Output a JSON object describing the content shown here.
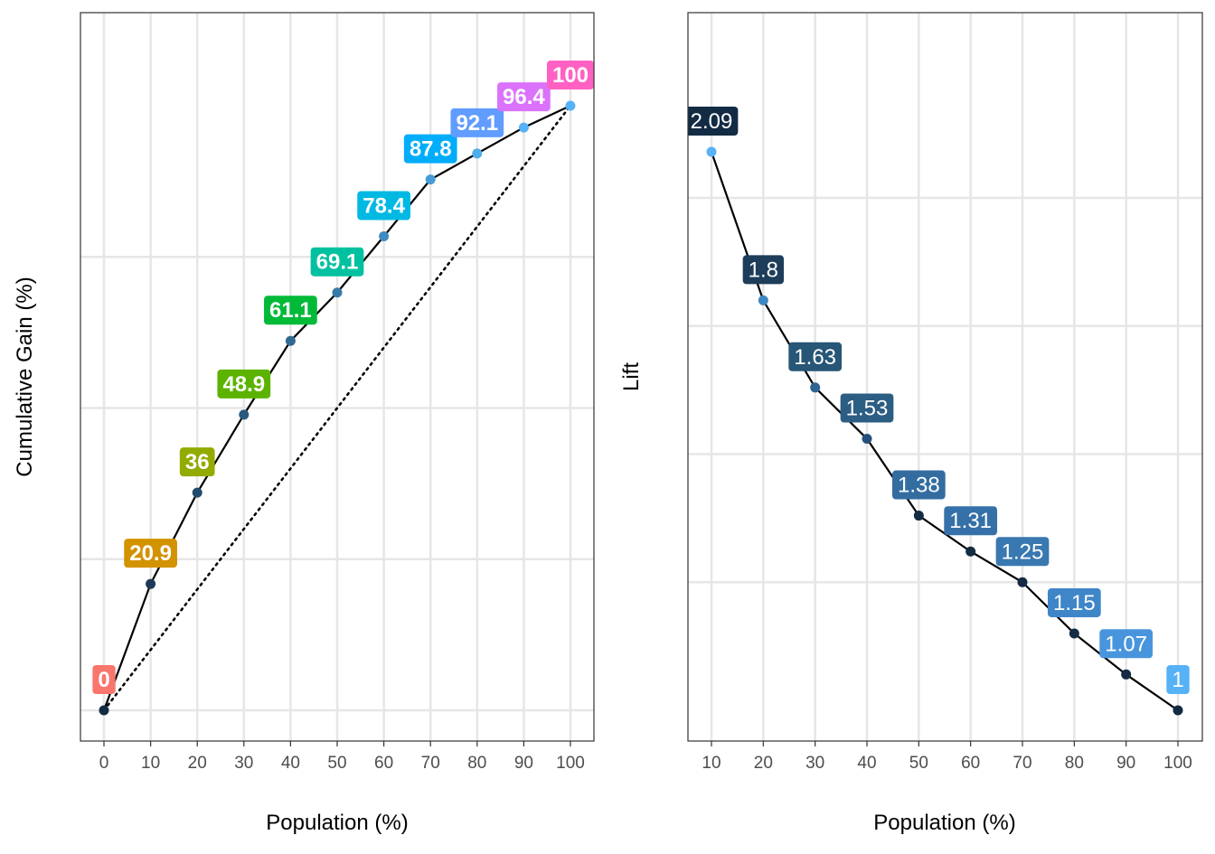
{
  "chart_data": [
    {
      "type": "line",
      "xlabel": "Population (%)",
      "ylabel": "Cumulative Gain (%)",
      "xlim": [
        0,
        100
      ],
      "ylim": [
        0,
        100
      ],
      "x_ticks": [
        "0",
        "10",
        "20",
        "30",
        "40",
        "50",
        "60",
        "70",
        "80",
        "90",
        "100"
      ],
      "y_gridlines": [
        0,
        25,
        50,
        75
      ],
      "grid": true,
      "series": [
        {
          "x": [
            0,
            10,
            20,
            30,
            40,
            50,
            60,
            70,
            80,
            90,
            100
          ],
          "values": [
            0,
            20.9,
            36,
            48.9,
            61.1,
            69.1,
            78.4,
            87.8,
            92.1,
            96.4,
            100
          ],
          "labels": [
            "0",
            "20.9",
            "36",
            "48.9",
            "61.1",
            "69.1",
            "78.4",
            "87.8",
            "92.1",
            "96.4",
            "100"
          ],
          "point_colors": [
            "#132B43",
            "#1B3A57",
            "#224A6B",
            "#29597F",
            "#306A94",
            "#377AA9",
            "#3F8BBF",
            "#469DD5",
            "#4DAEEB",
            "#56B1F7",
            "#56B1F7"
          ],
          "label_colors": [
            "#F8766D",
            "#D39200",
            "#93AA00",
            "#5BB300",
            "#00BA38",
            "#00C19F",
            "#00B9E3",
            "#00ADFA",
            "#619CFF",
            "#DB72FB",
            "#FF61C3"
          ]
        },
        {
          "x": [
            0,
            100
          ],
          "values": [
            0,
            100
          ],
          "style": "dotted"
        }
      ]
    },
    {
      "type": "line",
      "xlabel": "Population (%)",
      "ylabel": "Lift",
      "xlim": [
        10,
        100
      ],
      "ylim": [
        0.95,
        2.14
      ],
      "x_ticks": [
        "10",
        "20",
        "30",
        "40",
        "50",
        "60",
        "70",
        "80",
        "90",
        "100"
      ],
      "y_gridlines": [
        1.25,
        1.5,
        1.75,
        2.0
      ],
      "grid": true,
      "series": [
        {
          "x": [
            10,
            20,
            30,
            40,
            50,
            60,
            70,
            80,
            90,
            100
          ],
          "values": [
            2.09,
            1.8,
            1.63,
            1.53,
            1.38,
            1.31,
            1.25,
            1.15,
            1.07,
            1
          ],
          "labels": [
            "2.09",
            "1.8",
            "1.63",
            "1.53",
            "1.38",
            "1.31",
            "1.25",
            "1.15",
            "1.07",
            "1"
          ],
          "point_colors": [
            "#56B1F7",
            "#3E88C1",
            "#2E6592",
            "#25517A",
            "#132B43",
            "#132B43",
            "#132B43",
            "#132B43",
            "#132B43",
            "#132B43"
          ],
          "label_colors": [
            "#132B43",
            "#1E3D5A",
            "#275676",
            "#2C5D83",
            "#336DA0",
            "#3571A8",
            "#3978B0",
            "#3F86C8",
            "#4895DD",
            "#56B1F7"
          ]
        }
      ]
    }
  ]
}
